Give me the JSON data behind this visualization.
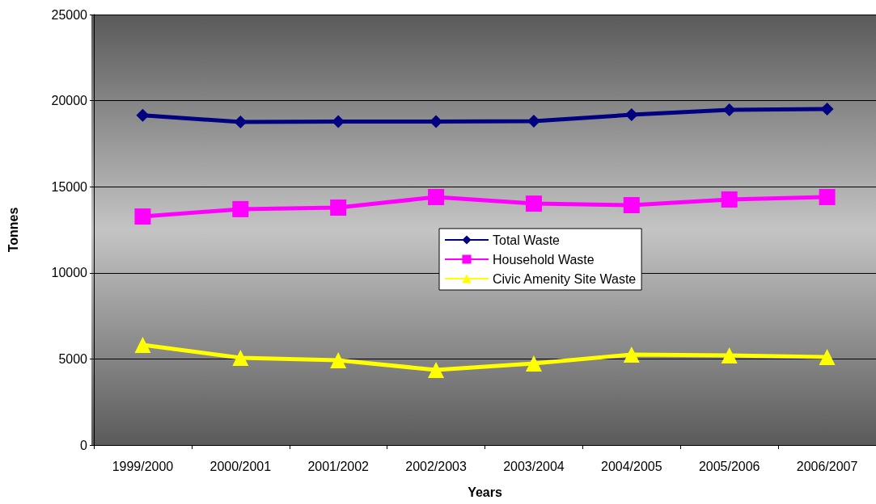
{
  "chart_data": {
    "type": "line",
    "xlabel": "Years",
    "ylabel": "Tonnes",
    "categories": [
      "1999/2000",
      "2000/2001",
      "2001/2002",
      "2002/2003",
      "2003/2004",
      "2004/2005",
      "2005/2006",
      "2006/2007"
    ],
    "series": [
      {
        "name": "Total Waste",
        "color": "#000080",
        "marker": "diamond",
        "values": [
          19150,
          18760,
          18780,
          18780,
          18810,
          19180,
          19470,
          19510
        ]
      },
      {
        "name": "Household Waste",
        "color": "#ff00ff",
        "marker": "square",
        "values": [
          13270,
          13700,
          13790,
          14400,
          14020,
          13930,
          14260,
          14400
        ]
      },
      {
        "name": "Civic Amenity Site Waste",
        "color": "#ffff00",
        "marker": "triangle",
        "values": [
          5820,
          5070,
          4930,
          4360,
          4740,
          5250,
          5210,
          5110
        ]
      }
    ],
    "ylim": [
      0,
      25000
    ],
    "yticks": [
      0,
      5000,
      10000,
      15000,
      20000,
      25000
    ],
    "grid": "y",
    "legend": "center"
  }
}
